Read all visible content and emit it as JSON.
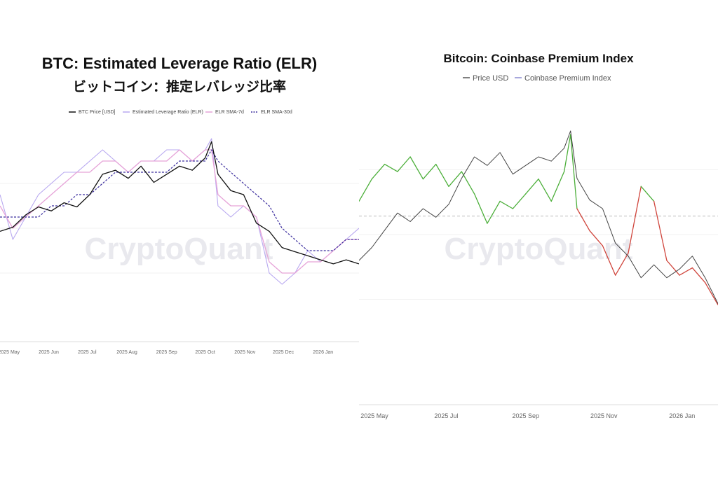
{
  "left": {
    "title": "BTC: Estimated Leverage Ratio (ELR)",
    "subtitle": "ビットコイン：推定レバレッジ比率",
    "watermark": "CryptoQuant",
    "legend": [
      {
        "label": "BTC Price [USD]",
        "color": "#111111",
        "style": "solid"
      },
      {
        "label": "Estimated Leverage Ratio (ELR)",
        "color": "#b8a8f0",
        "style": "solid"
      },
      {
        "label": "ELR SMA-7d",
        "color": "#e6a3d8",
        "style": "solid"
      },
      {
        "label": "ELR SMA-30d",
        "color": "#3b2d9e",
        "style": "dashed"
      }
    ],
    "x_ticks": [
      "2025 May",
      "2025 Jun",
      "2025 Jul",
      "2025 Aug",
      "2025 Sep",
      "2025 Oct",
      "2025 Nov",
      "2025 Dec",
      "2026 Jan"
    ]
  },
  "right": {
    "title": "Bitcoin: Coinbase Premium Index",
    "watermark": "CryptoQuant",
    "legend": [
      {
        "label": "Price USD",
        "color": "#555555"
      },
      {
        "label": "Coinbase Premium Index",
        "color": "#8a8ad0"
      }
    ],
    "x_ticks": [
      "2025 May",
      "2025 Jul",
      "2025 Sep",
      "2025 Nov",
      "2026 Jan"
    ],
    "positive_color": "#4caf3a",
    "negative_color": "#d0453c"
  },
  "chart_data": [
    {
      "type": "line",
      "title": "BTC: Estimated Leverage Ratio (ELR)",
      "subtitle": "ビットコイン：推定レバレッジ比率",
      "x": [
        "2025-04-24",
        "2025-05-04",
        "2025-05-14",
        "2025-05-24",
        "2025-06-03",
        "2025-06-13",
        "2025-06-23",
        "2025-07-03",
        "2025-07-13",
        "2025-07-23",
        "2025-08-02",
        "2025-08-12",
        "2025-08-22",
        "2025-09-01",
        "2025-09-11",
        "2025-09-21",
        "2025-10-01",
        "2025-10-06",
        "2025-10-11",
        "2025-10-21",
        "2025-10-31",
        "2025-11-10",
        "2025-11-20",
        "2025-11-30",
        "2025-12-10",
        "2025-12-20",
        "2025-12-30",
        "2026-01-09",
        "2026-01-19",
        "2026-01-29"
      ],
      "series": [
        {
          "name": "BTC Price [USD]",
          "values": [
            94,
            95,
            98,
            100,
            99,
            101,
            100,
            103,
            108,
            109,
            107,
            110,
            106,
            108,
            110,
            109,
            112,
            116,
            108,
            104,
            103,
            96,
            94,
            90,
            89,
            88,
            87,
            86,
            87,
            86
          ]
        },
        {
          "name": "Estimated Leverage Ratio (ELR)",
          "values": [
            0.22,
            0.18,
            0.2,
            0.22,
            0.23,
            0.24,
            0.24,
            0.25,
            0.26,
            0.25,
            0.24,
            0.25,
            0.25,
            0.26,
            0.26,
            0.25,
            0.26,
            0.27,
            0.21,
            0.2,
            0.21,
            0.2,
            0.15,
            0.14,
            0.15,
            0.17,
            0.16,
            0.17,
            0.18,
            0.19
          ]
        },
        {
          "name": "ELR SMA-7d",
          "values": [
            0.21,
            0.19,
            0.2,
            0.21,
            0.22,
            0.23,
            0.24,
            0.24,
            0.25,
            0.25,
            0.24,
            0.25,
            0.25,
            0.25,
            0.26,
            0.25,
            0.26,
            0.26,
            0.22,
            0.21,
            0.21,
            0.2,
            0.16,
            0.15,
            0.15,
            0.16,
            0.16,
            0.17,
            0.18,
            0.18
          ]
        },
        {
          "name": "ELR SMA-30d",
          "values": [
            0.2,
            0.2,
            0.2,
            0.2,
            0.21,
            0.21,
            0.22,
            0.22,
            0.23,
            0.24,
            0.24,
            0.24,
            0.24,
            0.24,
            0.25,
            0.25,
            0.25,
            0.26,
            0.25,
            0.24,
            0.23,
            0.22,
            0.21,
            0.19,
            0.18,
            0.17,
            0.17,
            0.17,
            0.18,
            0.18
          ]
        }
      ],
      "x_ticks": [
        "2025 May",
        "2025 Jun",
        "2025 Jul",
        "2025 Aug",
        "2025 Sep",
        "2025 Oct",
        "2025 Nov",
        "2025 Dec",
        "2026 Jan"
      ],
      "ylim_price": [
        70,
        125
      ],
      "ylim_elr": [
        0.1,
        0.3
      ],
      "grid": true,
      "legend_position": "top"
    },
    {
      "type": "line",
      "title": "Bitcoin: Coinbase Premium Index",
      "x": [
        "2025-04-24",
        "2025-05-04",
        "2025-05-14",
        "2025-05-24",
        "2025-06-03",
        "2025-06-13",
        "2025-06-23",
        "2025-07-03",
        "2025-07-13",
        "2025-07-23",
        "2025-08-02",
        "2025-08-12",
        "2025-08-22",
        "2025-09-01",
        "2025-09-11",
        "2025-09-21",
        "2025-10-01",
        "2025-10-06",
        "2025-10-11",
        "2025-10-21",
        "2025-10-31",
        "2025-11-10",
        "2025-11-20",
        "2025-11-30",
        "2025-12-10",
        "2025-12-20",
        "2025-12-30",
        "2026-01-09",
        "2026-01-19",
        "2026-01-29"
      ],
      "series": [
        {
          "name": "Price USD",
          "values": [
            94,
            97,
            101,
            105,
            103,
            106,
            104,
            107,
            113,
            118,
            116,
            119,
            114,
            116,
            118,
            117,
            120,
            124,
            113,
            108,
            106,
            98,
            95,
            90,
            93,
            90,
            92,
            95,
            90,
            84
          ]
        },
        {
          "name": "Coinbase Premium Index",
          "values": [
            0.02,
            0.05,
            0.07,
            0.06,
            0.08,
            0.05,
            0.07,
            0.04,
            0.06,
            0.03,
            -0.01,
            0.02,
            0.01,
            0.03,
            0.05,
            0.02,
            0.06,
            0.11,
            0.01,
            -0.02,
            -0.04,
            -0.08,
            -0.05,
            0.04,
            0.02,
            -0.06,
            -0.08,
            -0.07,
            -0.09,
            -0.12
          ]
        }
      ],
      "x_ticks": [
        "2025 May",
        "2025 Jul",
        "2025 Sep",
        "2025 Nov",
        "2026 Jan"
      ],
      "ylim_price": [
        70,
        130
      ],
      "ylim_premium": [
        -0.2,
        0.15
      ],
      "grid": true,
      "legend_position": "top"
    }
  ]
}
